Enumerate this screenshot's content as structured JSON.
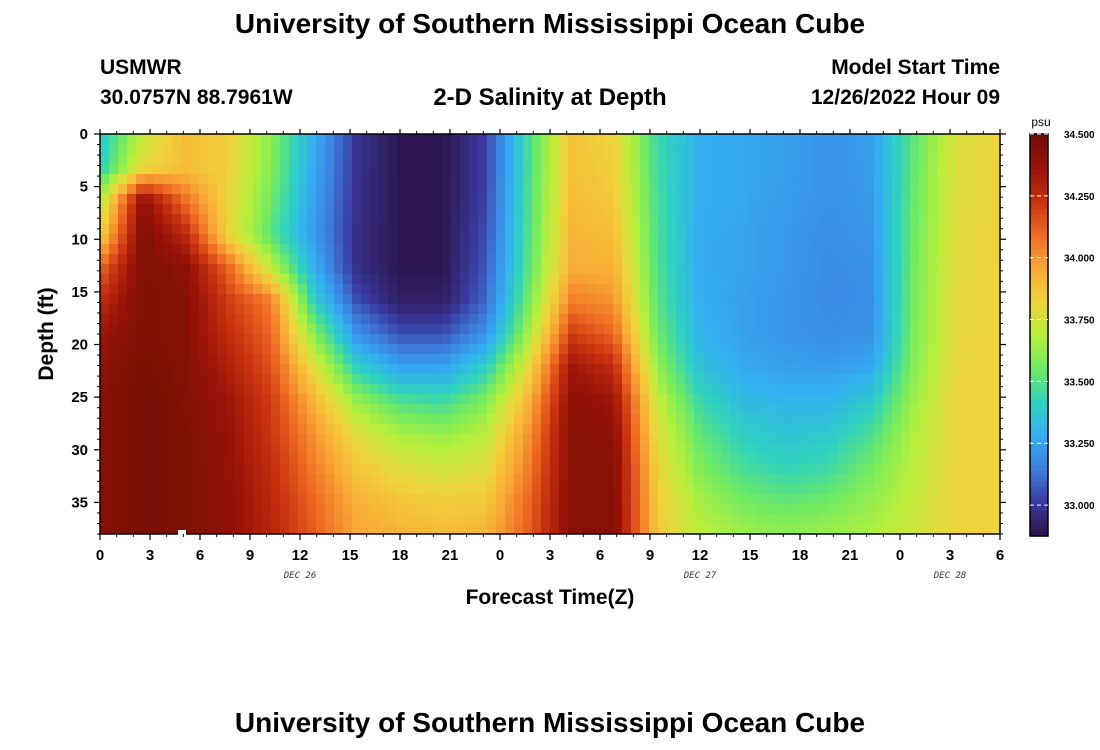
{
  "header": {
    "title": "University of Southern Mississippi Ocean Cube",
    "station": "USMWR",
    "coords": "30.0757N  88.7961W",
    "subtitle": "2-D Salinity at Depth",
    "start_label": "Model Start Time",
    "start_value": "12/26/2022 Hour 09"
  },
  "footer": {
    "title": "University of Southern Mississippi Ocean Cube"
  },
  "chart_data": {
    "type": "heatmap",
    "title": "2-D Salinity at Depth",
    "xlabel": "Forecast Time(Z)",
    "ylabel": "Depth (ft)",
    "x_range_hours": [
      0,
      54
    ],
    "y_range_ft": [
      0,
      38
    ],
    "y_inverted": true,
    "x_tick_labels": [
      "0",
      "3",
      "6",
      "9",
      "12",
      "15",
      "18",
      "21",
      "0",
      "3",
      "6",
      "9",
      "12",
      "15",
      "18",
      "21",
      "0",
      "3",
      "6"
    ],
    "y_tick_labels": [
      "0",
      "5",
      "10",
      "15",
      "20",
      "25",
      "30",
      "35"
    ],
    "date_labels": [
      {
        "label": "DEC 26",
        "hour": 12
      },
      {
        "label": "DEC 27",
        "hour": 36
      },
      {
        "label": "DEC 28",
        "hour": 51
      }
    ],
    "colorbar": {
      "unit": "psu",
      "min": 32.875,
      "max": 34.5,
      "tick_labels": [
        "34.500",
        "34.250",
        "34.000",
        "33.750",
        "33.500",
        "33.250",
        "33.000"
      ],
      "colors": [
        "#2b1245",
        "#3a3a9e",
        "#3d7fe0",
        "#33aef2",
        "#2fd3c0",
        "#6fea62",
        "#b7ef3b",
        "#efd33a",
        "#f9a835",
        "#ee6a22",
        "#c7310f",
        "#991308",
        "#6f0d03"
      ]
    },
    "grid": false,
    "values_psu": [
      [
        33.36,
        33.72,
        33.9,
        33.84,
        33.6,
        33.28,
        32.99,
        32.89,
        32.89,
        33.02,
        33.47,
        33.88,
        33.82,
        33.45,
        33.28,
        33.26,
        33.24,
        33.2,
        33.24,
        33.52,
        33.77,
        33.82
      ],
      [
        33.4,
        33.8,
        33.89,
        33.83,
        33.59,
        33.26,
        32.99,
        32.89,
        32.89,
        33.02,
        33.47,
        33.88,
        33.83,
        33.46,
        33.28,
        33.26,
        33.24,
        33.2,
        33.23,
        33.53,
        33.78,
        33.82
      ],
      [
        33.68,
        34.4,
        34.08,
        33.81,
        33.55,
        33.24,
        32.98,
        32.89,
        32.89,
        33.03,
        33.48,
        33.9,
        33.86,
        33.47,
        33.28,
        33.26,
        33.23,
        33.2,
        33.22,
        33.54,
        33.78,
        33.82
      ],
      [
        33.82,
        34.45,
        34.26,
        33.81,
        33.5,
        33.22,
        32.97,
        32.89,
        32.89,
        33.05,
        33.49,
        33.92,
        33.89,
        33.48,
        33.27,
        33.25,
        33.22,
        33.19,
        33.21,
        33.55,
        33.79,
        33.82
      ],
      [
        34.1,
        34.45,
        34.4,
        34.1,
        33.7,
        33.28,
        32.97,
        32.89,
        32.89,
        33.07,
        33.51,
        33.94,
        33.93,
        33.49,
        33.27,
        33.25,
        33.22,
        33.18,
        33.2,
        33.56,
        33.79,
        33.82
      ],
      [
        34.25,
        34.45,
        34.42,
        34.2,
        34.05,
        33.4,
        33.05,
        32.92,
        32.92,
        33.1,
        33.56,
        34.05,
        34.0,
        33.51,
        33.28,
        33.24,
        33.21,
        33.18,
        33.19,
        33.57,
        33.8,
        33.82
      ],
      [
        34.35,
        34.45,
        34.42,
        34.25,
        34.1,
        33.6,
        33.2,
        33.05,
        33.05,
        33.2,
        33.65,
        34.2,
        34.1,
        33.55,
        33.3,
        33.24,
        33.21,
        33.19,
        33.2,
        33.58,
        33.8,
        33.82
      ],
      [
        34.4,
        34.47,
        34.43,
        34.3,
        34.15,
        33.78,
        33.4,
        33.25,
        33.25,
        33.4,
        33.8,
        34.35,
        34.25,
        33.62,
        33.35,
        33.27,
        33.24,
        33.23,
        33.26,
        33.6,
        33.81,
        33.82
      ],
      [
        34.42,
        34.48,
        34.44,
        34.35,
        34.2,
        33.92,
        33.62,
        33.48,
        33.45,
        33.58,
        33.92,
        34.4,
        34.35,
        33.72,
        33.44,
        33.33,
        33.3,
        33.3,
        33.38,
        33.64,
        33.82,
        33.82
      ],
      [
        34.42,
        34.48,
        34.45,
        34.37,
        34.22,
        34.0,
        33.78,
        33.66,
        33.62,
        33.7,
        34.0,
        34.42,
        34.4,
        33.78,
        33.52,
        33.4,
        33.36,
        33.38,
        33.48,
        33.68,
        33.82,
        33.82
      ],
      [
        34.42,
        34.48,
        34.45,
        34.38,
        34.25,
        34.05,
        33.86,
        33.78,
        33.74,
        33.78,
        34.05,
        34.42,
        34.42,
        33.82,
        33.58,
        33.47,
        33.42,
        33.45,
        33.56,
        33.7,
        33.82,
        33.82
      ],
      [
        34.42,
        34.48,
        34.45,
        34.39,
        34.27,
        34.1,
        33.93,
        33.87,
        33.84,
        33.86,
        34.1,
        34.42,
        34.42,
        33.85,
        33.65,
        33.56,
        33.52,
        33.55,
        33.62,
        33.72,
        33.82,
        33.82
      ],
      [
        34.42,
        34.48,
        34.45,
        34.39,
        34.28,
        34.12,
        33.96,
        33.92,
        33.9,
        33.92,
        34.12,
        34.42,
        34.42,
        33.86,
        33.7,
        33.64,
        33.62,
        33.64,
        33.67,
        33.74,
        33.82,
        33.82
      ]
    ]
  }
}
